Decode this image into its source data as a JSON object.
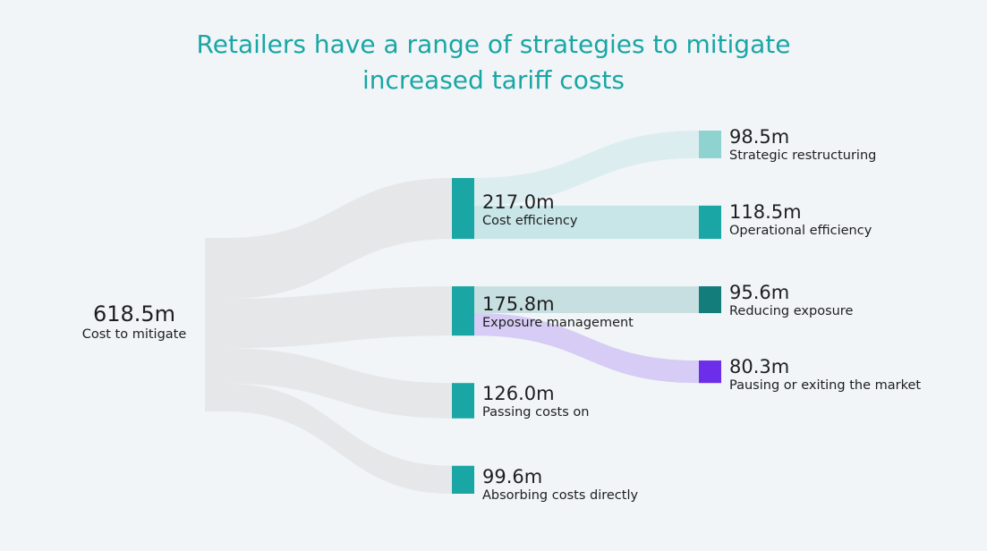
{
  "title_lines": [
    "Retailers have a range of strategies to mitigate",
    "increased tariff costs"
  ],
  "colors": {
    "title": "#1aa6a4",
    "link_root": "#e6e7e8",
    "node_primary": "#1aa6a4",
    "strategic_restructuring": "#8fd3d1",
    "reducing_exposure": "#127d7a",
    "pausing_exiting": "#6c2ee8",
    "link_strategic": "#dcedf0",
    "link_operational": "#c8e6e8",
    "link_reducing": "#c7dfe0",
    "link_pausing": "#d6ccf5"
  },
  "chart_data": {
    "type": "sankey",
    "nodes": [
      {
        "id": "root",
        "value": 618.5,
        "value_label": "618.5m",
        "name": "Cost to mitigate"
      },
      {
        "id": "cost_eff",
        "value": 217.0,
        "value_label": "217.0m",
        "name": "Cost efficiency"
      },
      {
        "id": "exposure",
        "value": 175.8,
        "value_label": "175.8m",
        "name": "Exposure management"
      },
      {
        "id": "passing",
        "value": 126.0,
        "value_label": "126.0m",
        "name": "Passing costs on"
      },
      {
        "id": "absorbing",
        "value": 99.6,
        "value_label": "99.6m",
        "name": "Absorbing costs directly"
      },
      {
        "id": "strategic",
        "value": 98.5,
        "value_label": "98.5m",
        "name": "Strategic restructuring"
      },
      {
        "id": "operational",
        "value": 118.5,
        "value_label": "118.5m",
        "name": "Operational efficiency"
      },
      {
        "id": "reducing",
        "value": 95.6,
        "value_label": "95.6m",
        "name": "Reducing exposure"
      },
      {
        "id": "pausing",
        "value": 80.3,
        "value_label": "80.3m",
        "name": "Pausing or exiting the market"
      }
    ],
    "links": [
      {
        "source": "root",
        "target": "cost_eff",
        "value": 217.0
      },
      {
        "source": "root",
        "target": "exposure",
        "value": 175.8
      },
      {
        "source": "root",
        "target": "passing",
        "value": 126.0
      },
      {
        "source": "root",
        "target": "absorbing",
        "value": 99.6
      },
      {
        "source": "cost_eff",
        "target": "strategic",
        "value": 98.5
      },
      {
        "source": "cost_eff",
        "target": "operational",
        "value": 118.5
      },
      {
        "source": "exposure",
        "target": "reducing",
        "value": 95.6
      },
      {
        "source": "exposure",
        "target": "pausing",
        "value": 80.3
      }
    ]
  }
}
